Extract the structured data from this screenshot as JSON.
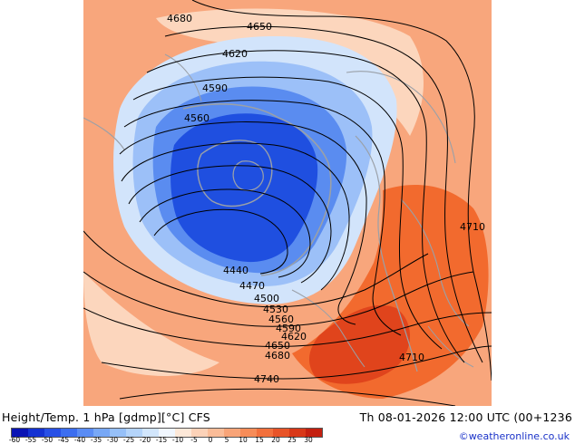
{
  "map": {
    "colors": {
      "background": "#f8a67c",
      "cold_core": "#1f4fe0",
      "cold_mid": "#5a8cf0",
      "cold_outer": "#9cc0f8",
      "cold_edge": "#d2e4fb",
      "warm_light": "#fcd6bd",
      "warm_strong": "#f26a2e",
      "warm_hot": "#e0441c",
      "coastline": "#9aa0a8",
      "contour": "#000000"
    },
    "contour_labels": [
      "4680",
      "4650",
      "4620",
      "4590",
      "4560",
      "4440",
      "4470",
      "4500",
      "4530",
      "4560",
      "4590",
      "4620",
      "4650",
      "4680",
      "4710",
      "4710",
      "4740"
    ]
  },
  "footer": {
    "title": "Height/Temp. 1 hPa [gdmp][°C] CFS",
    "valid_time": "Th 08-01-2026 12:00 UTC (00+1236",
    "credit": "©weatheronline.co.uk"
  },
  "colorbar": {
    "labels": [
      "-60",
      "-55",
      "-50",
      "-45",
      "-40",
      "-35",
      "-30",
      "-25",
      "-20",
      "-15",
      "-10",
      "-5",
      "0",
      "5",
      "10",
      "15",
      "20",
      "25",
      "30"
    ],
    "colors": [
      "#0a14b4",
      "#1432d2",
      "#2850e6",
      "#3c6ef0",
      "#5a8cf4",
      "#78a8f6",
      "#96c0f8",
      "#b4d4fa",
      "#d2e6fc",
      "#f0f6fe",
      "#fde8d8",
      "#fcd2b8",
      "#fabc98",
      "#f8a478",
      "#f68c58",
      "#f2703c",
      "#e85428",
      "#d83818",
      "#c42010"
    ]
  }
}
